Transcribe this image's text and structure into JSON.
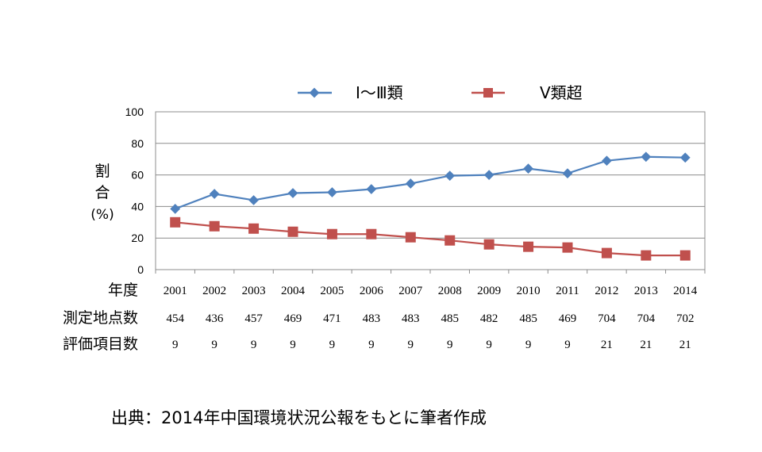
{
  "chart_data": {
    "type": "line",
    "categories": [
      "2001",
      "2002",
      "2003",
      "2004",
      "2005",
      "2006",
      "2007",
      "2008",
      "2009",
      "2010",
      "2011",
      "2012",
      "2013",
      "2014"
    ],
    "series": [
      {
        "name": "Ⅰ～Ⅲ類",
        "color": "#4f81bd",
        "marker": "diamond",
        "values": [
          38.5,
          48,
          44,
          48.5,
          49,
          51,
          54.5,
          59.5,
          60,
          64,
          61,
          69,
          71.5,
          71
        ]
      },
      {
        "name": "Ⅴ類超",
        "color": "#c0504d",
        "marker": "square",
        "values": [
          30,
          27.5,
          26,
          24,
          22.5,
          22.5,
          20.5,
          18.5,
          16,
          14.5,
          14,
          10.5,
          9,
          9
        ]
      }
    ],
    "ylim": [
      0,
      100
    ],
    "yticks": [
      "0",
      "20",
      "40",
      "60",
      "80",
      "100"
    ],
    "ylabel_lines": [
      "割",
      "合",
      "(%)"
    ],
    "grid": true,
    "legend_position": "top",
    "table_rows": [
      {
        "label": "年度",
        "values": [
          "2001",
          "2002",
          "2003",
          "2004",
          "2005",
          "2006",
          "2007",
          "2008",
          "2009",
          "2010",
          "2011",
          "2012",
          "2013",
          "2014"
        ]
      },
      {
        "label": "測定地点数",
        "values": [
          "454",
          "436",
          "457",
          "469",
          "471",
          "483",
          "483",
          "485",
          "482",
          "485",
          "469",
          "704",
          "704",
          "702"
        ]
      },
      {
        "label": "評価項目数",
        "values": [
          "9",
          "9",
          "9",
          "9",
          "9",
          "9",
          "9",
          "9",
          "9",
          "9",
          "9",
          "21",
          "21",
          "21"
        ]
      }
    ],
    "source": "出典：2014年中国環境状況公報をもとに筆者作成"
  }
}
